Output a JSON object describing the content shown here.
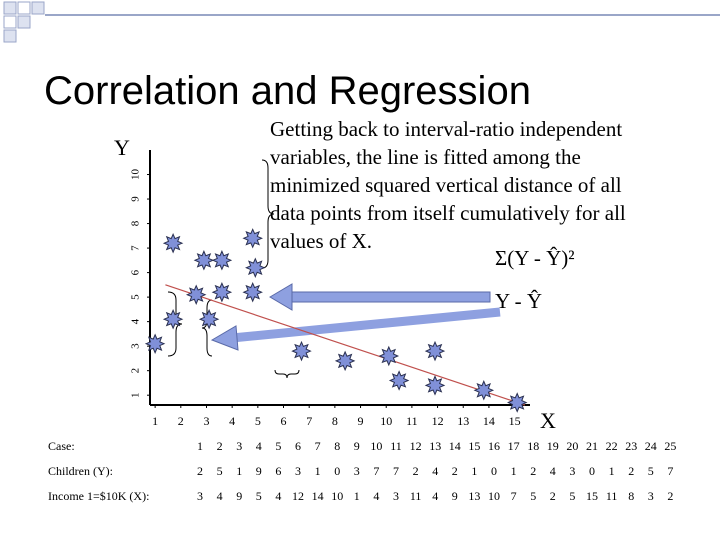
{
  "header": {
    "title": "Correlation and Regression"
  },
  "body": {
    "text_lines": [
      "Getting back to interval-ratio independent",
      "variables, the line is fitted among the",
      "minimized squared vertical distance of all",
      "data points from itself cumulatively for all",
      "values of X."
    ],
    "formula_sum": "Σ(Y - Ŷ)²",
    "formula_residual": "Y - Ŷ"
  },
  "chart_data": {
    "type": "scatter",
    "x_label": "X",
    "y_label": "Y",
    "series": [
      {
        "name": "Cases",
        "color": "#8090d8",
        "x": [
          1.7,
          1.7,
          1.0,
          2.9,
          3.6,
          2.6,
          3.6,
          3.1,
          4.8,
          4.9,
          4.8,
          6.7,
          8.4,
          10.1,
          11.9,
          10.5,
          11.9,
          13.8,
          15.1
        ],
        "y": [
          7.2,
          4.1,
          3.1,
          6.5,
          6.5,
          5.1,
          5.2,
          4.1,
          7.4,
          6.2,
          5.2,
          2.8,
          2.4,
          2.6,
          2.8,
          1.6,
          1.4,
          1.2,
          0.7
        ]
      }
    ],
    "regression_line": {
      "color": "#c0504d",
      "x": [
        1.4,
        15.4
      ],
      "y": [
        5.5,
        0.6
      ]
    },
    "xlim": [
      0.8,
      15.6
    ],
    "ylim": [
      0.6,
      11
    ],
    "xticks": [
      1,
      2,
      3,
      4,
      5,
      6,
      7,
      8,
      9,
      10,
      11,
      12,
      13,
      14,
      15
    ],
    "yticks": [
      1,
      2,
      3,
      4,
      5,
      6,
      7,
      8,
      9,
      10
    ]
  },
  "table": {
    "row_labels": [
      "Case:",
      "Children (Y):",
      "Income 1=$10K (X):"
    ],
    "rows": [
      [
        1,
        2,
        3,
        4,
        5,
        6,
        7,
        8,
        9,
        10,
        11,
        12,
        13,
        14,
        15,
        16,
        17,
        18,
        19,
        20,
        21,
        22,
        23,
        24,
        25
      ],
      [
        2,
        5,
        1,
        9,
        6,
        3,
        1,
        0,
        3,
        7,
        7,
        2,
        4,
        2,
        1,
        0,
        1,
        2,
        4,
        3,
        0,
        1,
        2,
        5,
        7
      ],
      [
        3,
        4,
        9,
        5,
        4,
        12,
        14,
        10,
        1,
        4,
        3,
        11,
        4,
        9,
        13,
        10,
        7,
        5,
        2,
        5,
        15,
        11,
        8,
        3,
        2
      ]
    ]
  }
}
